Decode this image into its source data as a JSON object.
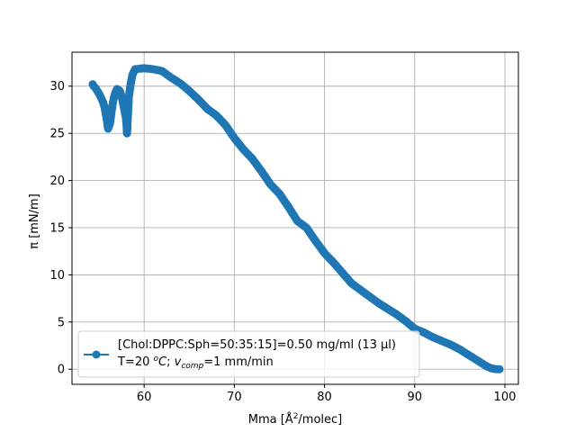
{
  "chart_data": {
    "type": "line",
    "title": "",
    "xlabel": "Mma [Å²/molec]",
    "ylabel": "π [mN/m]",
    "xlim": [
      52,
      101.5
    ],
    "ylim": [
      -1.6,
      33.6
    ],
    "xticks": [
      60,
      70,
      80,
      90,
      100
    ],
    "yticks": [
      0,
      5,
      10,
      15,
      20,
      25,
      30
    ],
    "grid": true,
    "legend_position": "lower-left",
    "colors": {
      "series": "#1f77b4",
      "grid": "#b0b0b0",
      "axes": "#000000"
    },
    "series": [
      {
        "name": "[Chol:DPPC:Sph=50:35:15]=0.50 mg/ml (13 µl)",
        "name_line2": "T=20 °C; v_comp=1 mm/min",
        "marker": "circle",
        "x": [
          99.4,
          99.0,
          98.5,
          98.0,
          97.5,
          97.0,
          96.5,
          96.0,
          95.5,
          95.0,
          94.0,
          93.0,
          92.0,
          91.0,
          90.0,
          89.0,
          88.0,
          87.0,
          86.0,
          85.0,
          84.0,
          83.0,
          82.0,
          81.0,
          80.0,
          79.0,
          78.0,
          77.0,
          76.0,
          75.0,
          74.0,
          73.0,
          72.0,
          71.0,
          70.0,
          69.0,
          68.0,
          67.0,
          66.0,
          65.0,
          64.0,
          63.0,
          62.0,
          61.0,
          60.0,
          59.0,
          58.7,
          58.5,
          58.3,
          58.2,
          58.1,
          58.0,
          57.9,
          57.7,
          57.5,
          57.3,
          57.0,
          56.8,
          56.6,
          56.4,
          56.2,
          56.0,
          55.8,
          55.6,
          55.4,
          55.2,
          55.0,
          54.8,
          54.6,
          54.4,
          54.3
        ],
        "y": [
          0.0,
          0.0,
          0.1,
          0.3,
          0.6,
          0.9,
          1.2,
          1.5,
          1.8,
          2.1,
          2.6,
          3.0,
          3.4,
          3.9,
          4.3,
          5.1,
          5.8,
          6.4,
          7.0,
          7.7,
          8.4,
          9.1,
          10.2,
          11.3,
          12.3,
          13.6,
          15.0,
          15.7,
          17.2,
          18.6,
          19.6,
          21.0,
          22.3,
          23.3,
          24.5,
          25.9,
          26.9,
          27.6,
          28.6,
          29.5,
          30.3,
          30.9,
          31.6,
          31.8,
          31.9,
          31.8,
          31.2,
          30.2,
          28.8,
          26.9,
          25.0,
          26.5,
          27.0,
          28.0,
          28.9,
          29.5,
          29.7,
          29.3,
          28.6,
          27.4,
          26.0,
          25.5,
          26.8,
          27.8,
          28.4,
          28.8,
          29.2,
          29.5,
          29.8,
          30.0,
          30.2
        ]
      }
    ]
  }
}
